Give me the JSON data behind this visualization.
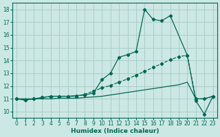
{
  "xlabel": "Humidex (Indice chaleur)",
  "background_color": "#cce8e4",
  "grid_color": "#aaccc8",
  "line_color": "#006655",
  "xlim": [
    -0.5,
    23.5
  ],
  "ylim": [
    9.5,
    18.5
  ],
  "yticks": [
    10,
    11,
    12,
    13,
    14,
    15,
    16,
    17,
    18
  ],
  "xticks": [
    0,
    1,
    2,
    3,
    4,
    5,
    6,
    7,
    8,
    9,
    10,
    11,
    12,
    13,
    14,
    15,
    16,
    17,
    18,
    19,
    20,
    21,
    22,
    23
  ],
  "series1_x": [
    0,
    1,
    2,
    3,
    4,
    5,
    6,
    7,
    8,
    9,
    10,
    11,
    12,
    13,
    14,
    15,
    16,
    17,
    18,
    20,
    21,
    22,
    23
  ],
  "series1_y": [
    11.0,
    10.9,
    11.0,
    11.1,
    11.2,
    11.2,
    11.2,
    11.25,
    11.3,
    11.45,
    12.5,
    13.0,
    14.25,
    14.45,
    14.7,
    18.0,
    17.2,
    17.1,
    17.5,
    14.4,
    10.85,
    9.8,
    11.2
  ],
  "series2_x": [
    0,
    1,
    2,
    3,
    4,
    5,
    6,
    7,
    8,
    9,
    10,
    11,
    12,
    13,
    14,
    15,
    16,
    17,
    18,
    19,
    20,
    21,
    22,
    23
  ],
  "series2_y": [
    11.0,
    10.9,
    11.0,
    11.1,
    11.2,
    11.2,
    11.2,
    11.2,
    11.35,
    11.6,
    11.85,
    12.05,
    12.3,
    12.55,
    12.85,
    13.15,
    13.45,
    13.75,
    14.05,
    14.3,
    14.4,
    11.0,
    11.0,
    11.2
  ],
  "series3_x": [
    0,
    1,
    2,
    3,
    4,
    5,
    6,
    7,
    8,
    9,
    10,
    11,
    12,
    13,
    14,
    15,
    16,
    17,
    18,
    19,
    20,
    21,
    22,
    23
  ],
  "series3_y": [
    11.0,
    11.0,
    11.0,
    11.0,
    11.0,
    11.05,
    11.05,
    11.05,
    11.1,
    11.15,
    11.2,
    11.3,
    11.4,
    11.5,
    11.6,
    11.7,
    11.8,
    11.9,
    12.0,
    12.1,
    12.3,
    11.0,
    11.0,
    11.2
  ]
}
